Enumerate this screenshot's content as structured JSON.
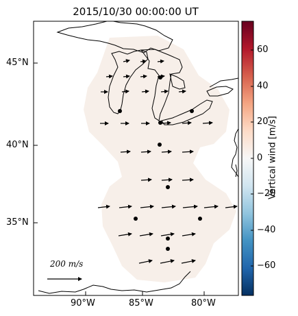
{
  "title": "2015/10/30 00:00:00 UT",
  "map": {
    "lat_labels": [
      "45°N",
      "40°N",
      "35°N"
    ],
    "lon_labels": [
      "90°W",
      "85°W",
      "80°W"
    ],
    "scale_arrow_label": "200 m/s",
    "station_markers": 10,
    "region_fill_color": "#f7efe9"
  },
  "colorbar": {
    "label": "Vertical wind [m/s]",
    "ticks": [
      "60",
      "40",
      "20",
      "0",
      "−20",
      "−40",
      "−60"
    ],
    "range": [
      -75,
      75
    ],
    "colormap": "RdBu_r",
    "colors": [
      "#67001f",
      "#b2182b",
      "#d6604d",
      "#f4a582",
      "#fddbc7",
      "#f7f7f7",
      "#d1e5f0",
      "#92c5de",
      "#4393c3",
      "#2166ac",
      "#053061"
    ]
  }
}
